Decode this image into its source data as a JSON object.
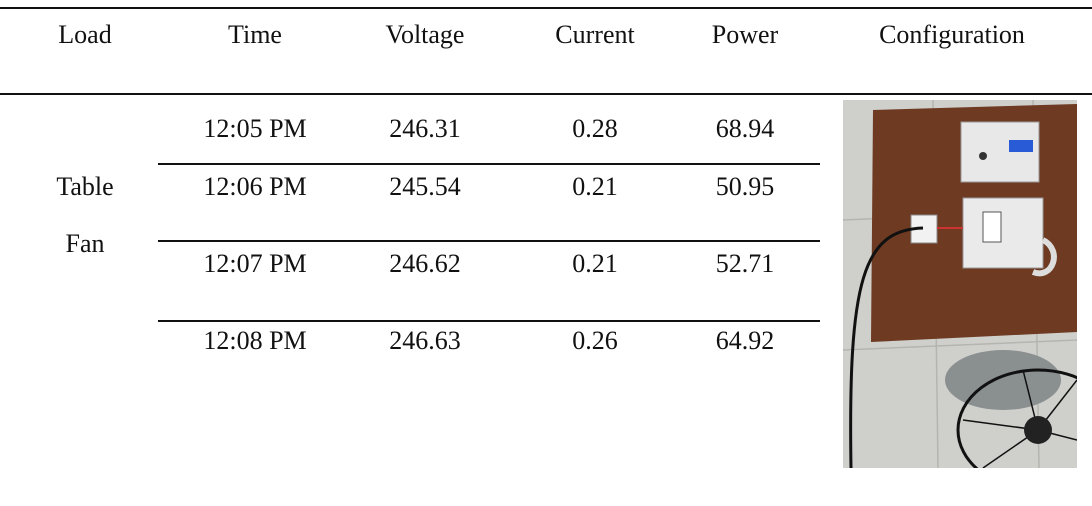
{
  "table": {
    "headers": [
      "Load",
      "Time",
      "Voltage",
      "Current",
      "Power",
      "Configuration"
    ],
    "load": [
      "Table",
      "Fan"
    ],
    "rows": [
      [
        "12:05 PM",
        "246.31",
        "0.28",
        "68.94"
      ],
      [
        "12:06 PM",
        "245.54",
        "0.21",
        "50.95"
      ],
      [
        "12:07 PM",
        "246.62",
        "0.21",
        "52.71"
      ],
      [
        "12:08 PM",
        "246.63",
        "0.26",
        "64.92"
      ]
    ]
  }
}
